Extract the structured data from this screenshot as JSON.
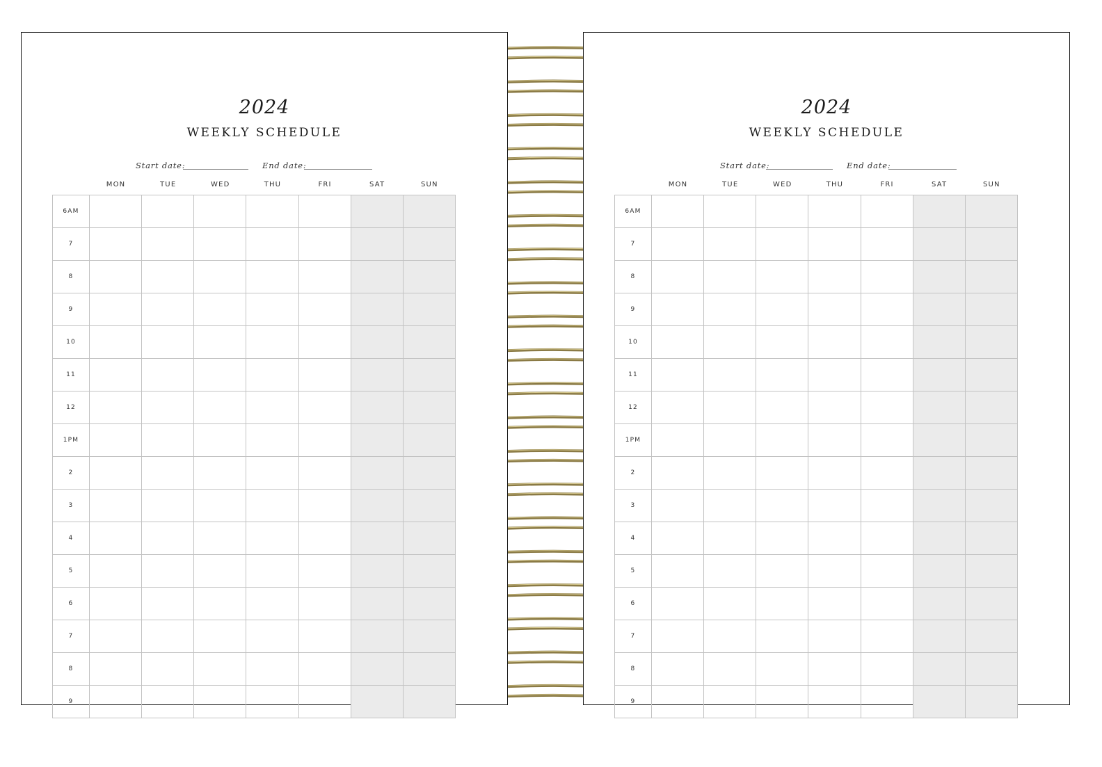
{
  "pages": [
    {
      "year": "2024",
      "title": "WEEKLY SCHEDULE",
      "start_date_label": "Start date:",
      "end_date_label": "End date:"
    },
    {
      "year": "2024",
      "title": "WEEKLY SCHEDULE",
      "start_date_label": "Start date:",
      "end_date_label": "End date:"
    }
  ],
  "days": [
    "MON",
    "TUE",
    "WED",
    "THU",
    "FRI",
    "SAT",
    "SUN"
  ],
  "weekend_days": [
    "SAT",
    "SUN"
  ],
  "hours": [
    "6AM",
    "7",
    "8",
    "9",
    "10",
    "11",
    "12",
    "1PM",
    "2",
    "3",
    "4",
    "5",
    "6",
    "7",
    "8",
    "9"
  ],
  "colors": {
    "weekend_fill": "#ebebeb",
    "grid_line": "#c2c2c2",
    "coil_gold": "#8a7a45"
  },
  "binding": {
    "coil_count": 20
  }
}
